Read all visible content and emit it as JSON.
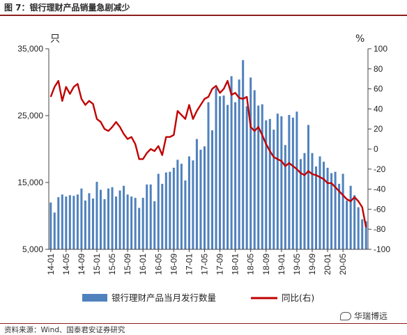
{
  "header": {
    "title": "图 7：银行理财产品销量急剧减少"
  },
  "footer": {
    "source": "资料来源：Wind、国泰君安证券研究",
    "watermark": "华瑞博远"
  },
  "chart_data": {
    "type": "bar",
    "left_axis": {
      "unit": "只",
      "ticks": [
        "5,000",
        "15,000",
        "25,000",
        "35,000"
      ],
      "tick_values": [
        5000,
        15000,
        25000,
        35000
      ],
      "ylim": [
        5000,
        35000
      ]
    },
    "right_axis": {
      "unit": "%",
      "ticks": [
        "-100",
        "-80",
        "-60",
        "-40",
        "-20",
        "0",
        "20",
        "40",
        "60",
        "80",
        "100"
      ],
      "tick_values": [
        -100,
        -80,
        -60,
        -40,
        -20,
        0,
        20,
        40,
        60,
        80,
        100
      ],
      "ylim": [
        -100,
        100
      ]
    },
    "x_tick_labels": [
      "14-01",
      "14-05",
      "14-09",
      "15-01",
      "15-05",
      "15-09",
      "16-01",
      "16-05",
      "16-09",
      "17-01",
      "17-05",
      "17-09",
      "18-01",
      "18-05",
      "18-09",
      "19-01",
      "19-05",
      "19-09",
      "20-01",
      "20-05"
    ],
    "series": [
      {
        "name": "银行理财产品当月发行数量",
        "axis": "left",
        "color": "#4f81bd",
        "values": [
          12000,
          10500,
          12800,
          13200,
          12900,
          13100,
          13000,
          13200,
          14100,
          12300,
          13400,
          12600,
          15100,
          13900,
          12500,
          14100,
          14300,
          12900,
          13800,
          14500,
          13200,
          12900,
          12700,
          11200,
          12700,
          14700,
          14700,
          12200,
          16300,
          14800,
          16500,
          16600,
          17200,
          18400,
          17800,
          15300,
          18900,
          18300,
          21500,
          19900,
          20400,
          27000,
          22800,
          29100,
          27900,
          28000,
          26600,
          30900,
          27000,
          30400,
          33300,
          26400,
          30700,
          28800,
          26500,
          26700,
          24300,
          24500,
          22900,
          25300,
          24900,
          20600,
          25100,
          24700,
          25600,
          18500,
          19400,
          23600,
          19400,
          17400,
          18900,
          18100,
          17200,
          16400,
          16600,
          14800,
          16300,
          12300,
          14500,
          13100,
          11300,
          9500,
          9200
        ]
      },
      {
        "name": "同比(右)",
        "axis": "right",
        "color": "#c00000",
        "values": [
          52,
          62,
          68,
          48,
          62,
          55,
          62,
          65,
          50,
          44,
          48,
          45,
          30,
          27,
          20,
          18,
          22,
          27,
          22,
          15,
          10,
          12,
          5,
          -10,
          -10,
          -4,
          0,
          -2,
          3,
          -6,
          12,
          12,
          14,
          38,
          34,
          30,
          44,
          30,
          38,
          44,
          50,
          52,
          60,
          63,
          56,
          60,
          68,
          54,
          56,
          51,
          50,
          52,
          22,
          18,
          22,
          14,
          5,
          -2,
          -8,
          -10,
          -12,
          -17,
          -14,
          -17,
          -20,
          -24,
          -26,
          -22,
          -25,
          -26,
          -28,
          -30,
          -34,
          -34,
          -38,
          -42,
          -46,
          -50,
          -52,
          -48,
          -52,
          -58,
          -78
        ]
      }
    ],
    "legend_position": "bottom-center",
    "grid": false
  }
}
